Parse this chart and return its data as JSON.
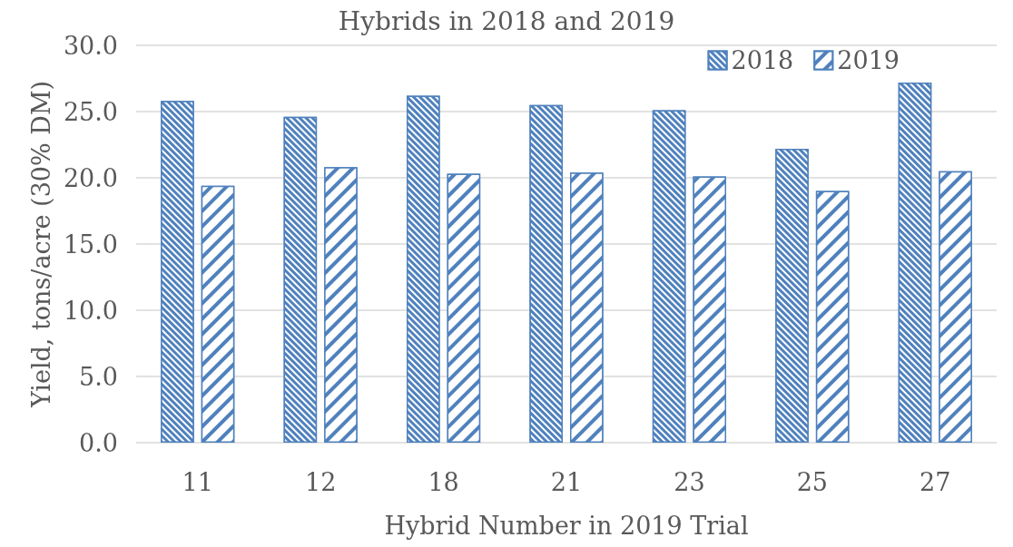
{
  "chart_data": {
    "type": "bar",
    "title": "Hybrids in 2018 and 2019",
    "xlabel": "Hybrid Number in 2019 Trial",
    "ylabel": "Yield, tons/acre (30% DM)",
    "categories": [
      "11",
      "12",
      "18",
      "21",
      "23",
      "25",
      "27"
    ],
    "series": [
      {
        "name": "2018",
        "color": "#4f81bd",
        "values": [
          25.8,
          24.6,
          26.2,
          25.5,
          25.1,
          22.2,
          27.2
        ]
      },
      {
        "name": "2019",
        "color": "#4f81bd",
        "values": [
          19.4,
          20.8,
          20.3,
          20.4,
          20.1,
          19.0,
          20.5
        ]
      }
    ],
    "ylim": [
      0,
      30
    ],
    "yticks": [
      {
        "value": 0,
        "label": "0.0"
      },
      {
        "value": 5,
        "label": "5.0"
      },
      {
        "value": 10,
        "label": "10.0"
      },
      {
        "value": 15,
        "label": "15.0"
      },
      {
        "value": 20,
        "label": "20.0"
      },
      {
        "value": 25,
        "label": "25.0"
      },
      {
        "value": 30,
        "label": "30.0"
      }
    ],
    "grid": "y",
    "legend": "top right"
  }
}
